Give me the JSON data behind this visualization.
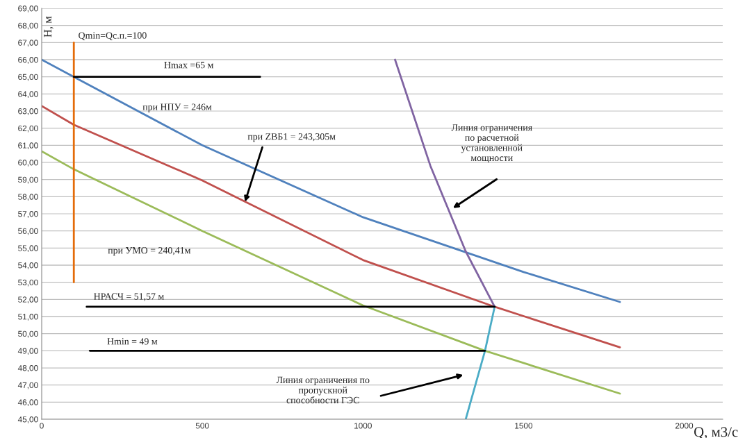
{
  "chart_data": {
    "type": "line",
    "xlabel": "Q, м3/с",
    "ylabel": "H, м",
    "xlim": [
      0,
      2120
    ],
    "xticks": [
      0,
      500,
      1000,
      1500,
      2000
    ],
    "ylim": [
      45,
      69
    ],
    "yticks": [
      {
        "value": 45,
        "label": "45,00"
      },
      {
        "value": 46,
        "label": "46,00"
      },
      {
        "value": 47,
        "label": "47,00"
      },
      {
        "value": 48,
        "label": "48,00"
      },
      {
        "value": 49,
        "label": "49,00"
      },
      {
        "value": 50,
        "label": "50,00"
      },
      {
        "value": 51,
        "label": "51,00"
      },
      {
        "value": 52,
        "label": "52,00"
      },
      {
        "value": 53,
        "label": "53,00"
      },
      {
        "value": 54,
        "label": "54,00"
      },
      {
        "value": 55,
        "label": "55,00"
      },
      {
        "value": 56,
        "label": "56,00"
      },
      {
        "value": 57,
        "label": "57,00"
      },
      {
        "value": 58,
        "label": "58,00"
      },
      {
        "value": 59,
        "label": "59,00"
      },
      {
        "value": 60,
        "label": "60,00"
      },
      {
        "value": 61,
        "label": "61,00"
      },
      {
        "value": 62,
        "label": "62,00"
      },
      {
        "value": 63,
        "label": "63,00"
      },
      {
        "value": 64,
        "label": "64,00"
      },
      {
        "value": 65,
        "label": "65,00"
      },
      {
        "value": 66,
        "label": "66,00"
      },
      {
        "value": 67,
        "label": "67,00"
      },
      {
        "value": 68,
        "label": "68,00"
      },
      {
        "value": 69,
        "label": "69,00"
      }
    ],
    "grid": "y",
    "legend": false,
    "marker": "none",
    "line_style": "solid",
    "series": [
      {
        "color": "#4f81bd",
        "x": [
          0,
          100,
          500,
          1000,
          1500,
          1800
        ],
        "values": [
          66,
          65,
          61,
          56.8,
          53.6,
          51.85
        ]
      },
      {
        "color": "#c0504d",
        "x": [
          0,
          100,
          500,
          1000,
          1410,
          1800
        ],
        "values": [
          63.3,
          62.2,
          58.95,
          54.3,
          51.57,
          49.2
        ]
      },
      {
        "color": "#9bbb59",
        "x": [
          0,
          100,
          500,
          1000,
          1380,
          1800
        ],
        "values": [
          60.65,
          59.6,
          56,
          51.65,
          49,
          46.5
        ]
      },
      {
        "color": "#8064a2",
        "x": [
          1100,
          1210,
          1320,
          1410
        ],
        "values": [
          66,
          59.8,
          54.8,
          51.57
        ]
      },
      {
        "color": "#4bacc6",
        "x": [
          1320,
          1380,
          1410
        ],
        "values": [
          45,
          49,
          51.57
        ]
      },
      {
        "color": "#e46c0a",
        "x": [
          100,
          100
        ],
        "values": [
          53,
          67
        ]
      },
      {
        "color": "#000000",
        "x": [
          100,
          680
        ],
        "values": [
          65,
          65
        ]
      },
      {
        "color": "#000000",
        "x": [
          140,
          1410
        ],
        "values": [
          51.57,
          51.57
        ]
      },
      {
        "color": "#000000",
        "x": [
          150,
          1380
        ],
        "values": [
          49,
          49
        ]
      }
    ],
    "annotations": [
      "Qmin=Qс.п.=100",
      "Hmax =65 м",
      "при НПУ = 246м",
      {
        "text": "при ZВБ1 = 243,305м",
        "x": 633,
        "y": 57.7
      },
      "при УМО = 240,41м",
      "HРАСЧ = 51,57 м",
      "Hmin = 49 м",
      "Линия ограничения\nпо расчетной\nустановленной\nмощности",
      "Линия ограничения по\nпропускной\nспособности ГЭС"
    ]
  }
}
